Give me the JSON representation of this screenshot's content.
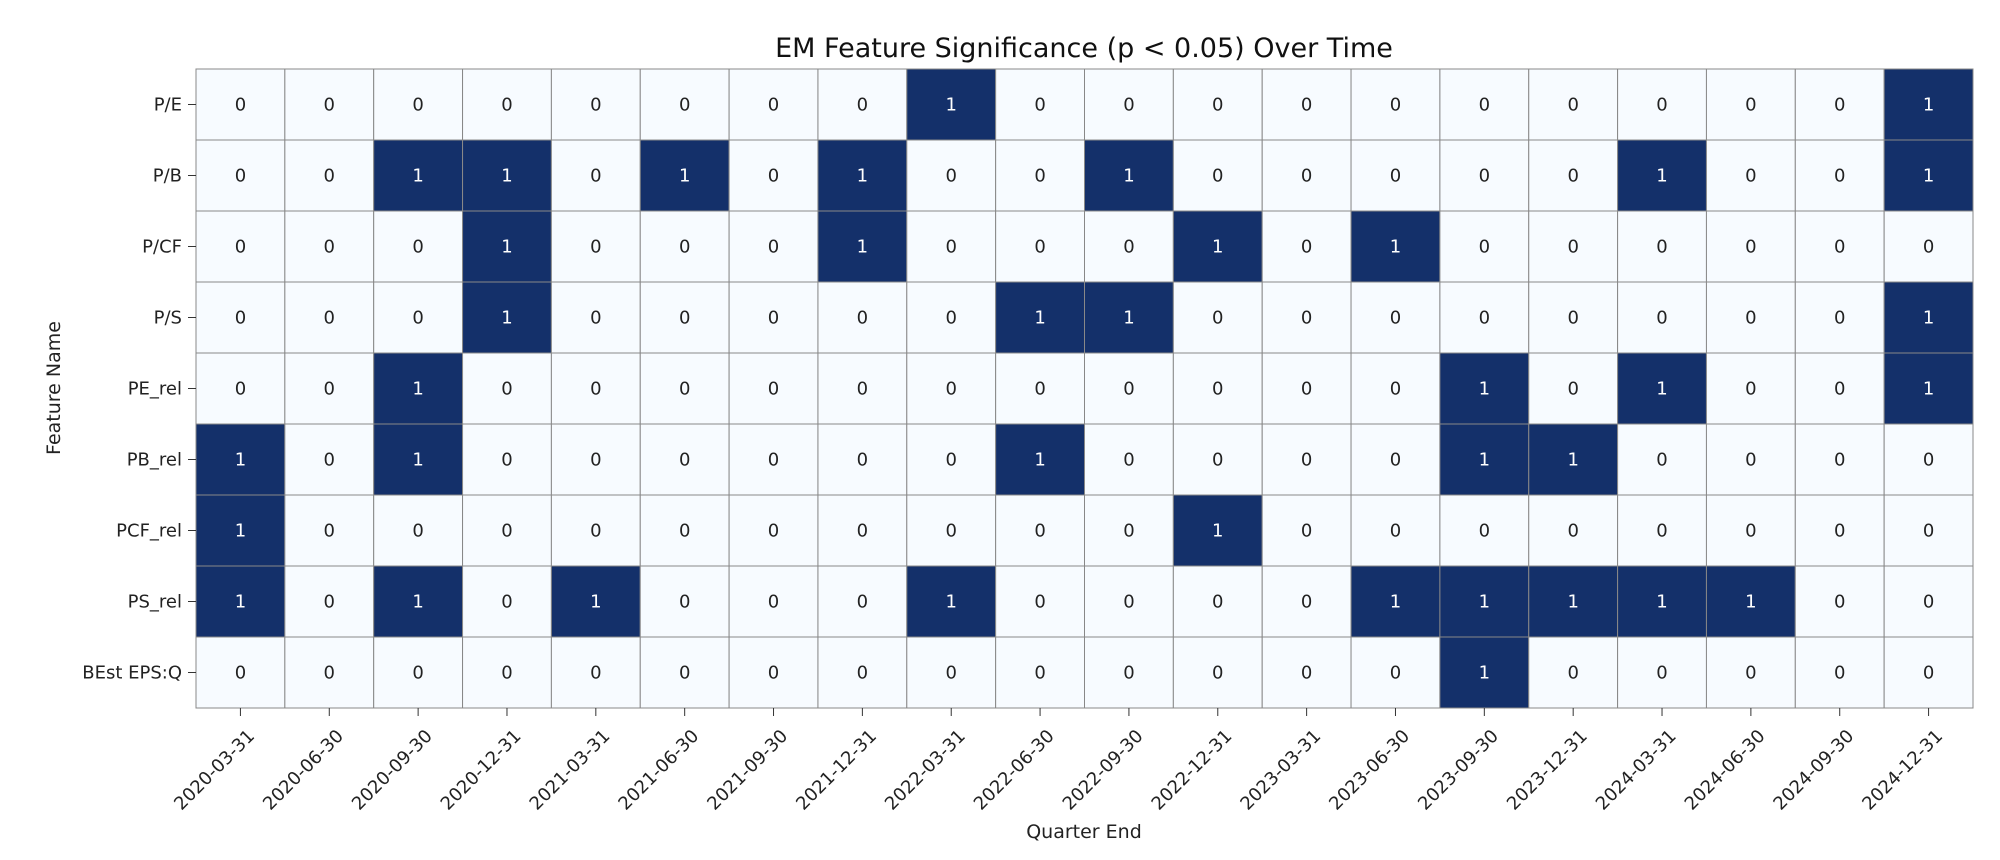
{
  "chart_data": {
    "type": "heatmap",
    "title": "EM Feature Significance (p < 0.05) Over Time",
    "xlabel": "Quarter End",
    "ylabel": "Feature Name",
    "x": [
      "2020-03-31",
      "2020-06-30",
      "2020-09-30",
      "2020-12-31",
      "2021-03-31",
      "2021-06-30",
      "2021-09-30",
      "2021-12-31",
      "2022-03-31",
      "2022-06-30",
      "2022-09-30",
      "2022-12-31",
      "2023-03-31",
      "2023-06-30",
      "2023-09-30",
      "2023-12-31",
      "2024-03-31",
      "2024-06-30",
      "2024-09-30",
      "2024-12-31"
    ],
    "y": [
      "P/E",
      "P/B",
      "P/CF",
      "P/S",
      "PE_rel",
      "PB_rel",
      "PCF_rel",
      "PS_rel",
      "BEst EPS:Q"
    ],
    "values": [
      [
        0,
        0,
        0,
        0,
        0,
        0,
        0,
        0,
        1,
        0,
        0,
        0,
        0,
        0,
        0,
        0,
        0,
        0,
        0,
        1
      ],
      [
        0,
        0,
        1,
        1,
        0,
        1,
        0,
        1,
        0,
        0,
        1,
        0,
        0,
        0,
        0,
        0,
        1,
        0,
        0,
        1
      ],
      [
        0,
        0,
        0,
        1,
        0,
        0,
        0,
        1,
        0,
        0,
        0,
        1,
        0,
        1,
        0,
        0,
        0,
        0,
        0,
        0
      ],
      [
        0,
        0,
        0,
        1,
        0,
        0,
        0,
        0,
        0,
        1,
        1,
        0,
        0,
        0,
        0,
        0,
        0,
        0,
        0,
        1
      ],
      [
        0,
        0,
        1,
        0,
        0,
        0,
        0,
        0,
        0,
        0,
        0,
        0,
        0,
        0,
        1,
        0,
        1,
        0,
        0,
        1
      ],
      [
        1,
        0,
        1,
        0,
        0,
        0,
        0,
        0,
        0,
        1,
        0,
        0,
        0,
        0,
        1,
        1,
        0,
        0,
        0,
        0
      ],
      [
        1,
        0,
        0,
        0,
        0,
        0,
        0,
        0,
        0,
        0,
        0,
        1,
        0,
        0,
        0,
        0,
        0,
        0,
        0,
        0
      ],
      [
        1,
        0,
        1,
        0,
        1,
        0,
        0,
        0,
        1,
        0,
        0,
        0,
        0,
        1,
        1,
        1,
        1,
        1,
        0,
        0
      ],
      [
        0,
        0,
        0,
        0,
        0,
        0,
        0,
        0,
        0,
        0,
        0,
        0,
        0,
        0,
        1,
        0,
        0,
        0,
        0,
        0
      ]
    ],
    "colors": {
      "low": "#f7fbff",
      "high": "#14306a",
      "cell_border": "#888888",
      "text_low": "#222222",
      "text_high": "#ffffff"
    },
    "grid": true,
    "legend": "none"
  }
}
